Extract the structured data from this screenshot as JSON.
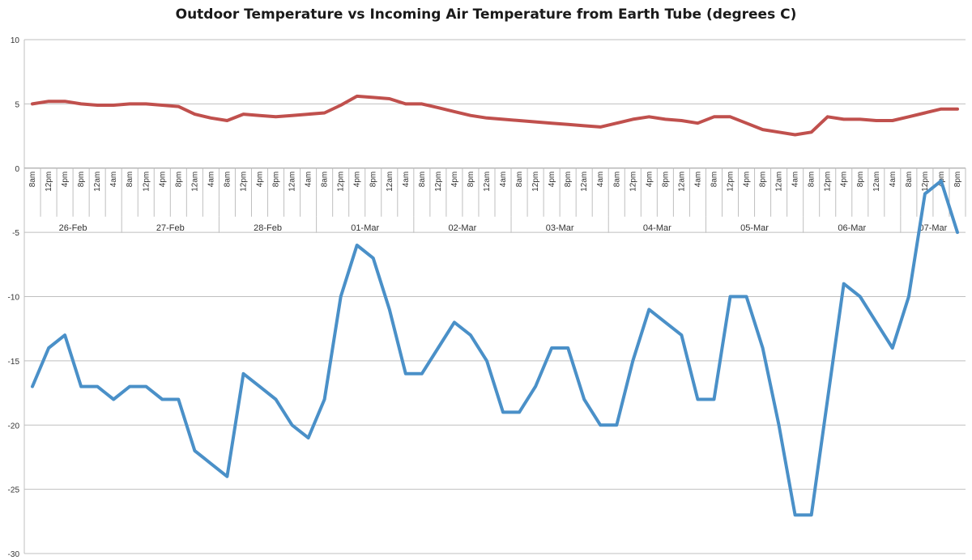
{
  "chart_data": {
    "type": "line",
    "title": "Outdoor Temperature vs Incoming Air Temperature from Earth Tube (degrees C)",
    "ylim": [
      -30,
      10
    ],
    "yticks": [
      10,
      5,
      0,
      -5,
      -10,
      -15,
      -20,
      -25,
      -30
    ],
    "grid": true,
    "legend": "none",
    "x_time_labels": [
      "8am",
      "12pm",
      "4pm",
      "8pm",
      "12am",
      "4am",
      "8am",
      "12pm",
      "4pm",
      "8pm",
      "12am",
      "4am",
      "8am",
      "12pm",
      "4pm",
      "8pm",
      "12am",
      "4am",
      "8am",
      "12pm",
      "4pm",
      "8pm",
      "12am",
      "4am",
      "8am",
      "12pm",
      "4pm",
      "8pm",
      "12am",
      "4am",
      "8am",
      "12pm",
      "4pm",
      "8pm",
      "12am",
      "4am",
      "8am",
      "12pm",
      "4pm",
      "8pm",
      "12am",
      "4am",
      "8am",
      "12pm",
      "4pm",
      "8pm",
      "12am",
      "4am",
      "8am",
      "12pm",
      "4pm",
      "8pm",
      "12am",
      "4am",
      "8am",
      "12pm",
      "4pm",
      "8pm"
    ],
    "x_day_labels": [
      "26-Feb",
      "27-Feb",
      "28-Feb",
      "01-Mar",
      "02-Mar",
      "03-Mar",
      "04-Mar",
      "05-Mar",
      "06-Mar",
      "07-Mar"
    ],
    "series": [
      {
        "color": "#c0504d",
        "values": [
          5.0,
          5.2,
          5.2,
          5.0,
          4.9,
          4.9,
          5.0,
          5.0,
          4.9,
          4.8,
          4.2,
          3.9,
          3.7,
          4.2,
          4.1,
          4.0,
          4.1,
          4.2,
          4.3,
          4.9,
          5.6,
          5.5,
          5.4,
          5.0,
          5.0,
          4.7,
          4.4,
          4.1,
          3.9,
          3.8,
          3.7,
          3.6,
          3.5,
          3.4,
          3.3,
          3.2,
          3.5,
          3.8,
          4.0,
          3.8,
          3.7,
          3.5,
          4.0,
          4.0,
          3.5,
          3.0,
          2.8,
          2.6,
          2.8,
          4.0,
          3.8,
          3.8,
          3.7,
          3.7,
          4.0,
          4.3,
          4.6,
          4.6
        ]
      },
      {
        "color": "#4a90c8",
        "values": [
          -17,
          -14,
          -13,
          -17,
          -17,
          -18,
          -17,
          -17,
          -18,
          -18,
          -22,
          -23,
          -24,
          -16,
          -17,
          -18,
          -20,
          -21,
          -18,
          -10,
          -6,
          -7,
          -11,
          -16,
          -16,
          -14,
          -12,
          -13,
          -15,
          -19,
          -19,
          -17,
          -14,
          -14,
          -18,
          -20,
          -20,
          -15,
          -11,
          -12,
          -13,
          -18,
          -18,
          -10,
          -10,
          -14,
          -20,
          -27,
          -27,
          -18,
          -9,
          -10,
          -12,
          -14,
          -10,
          -2,
          -1,
          -5
        ]
      }
    ]
  }
}
